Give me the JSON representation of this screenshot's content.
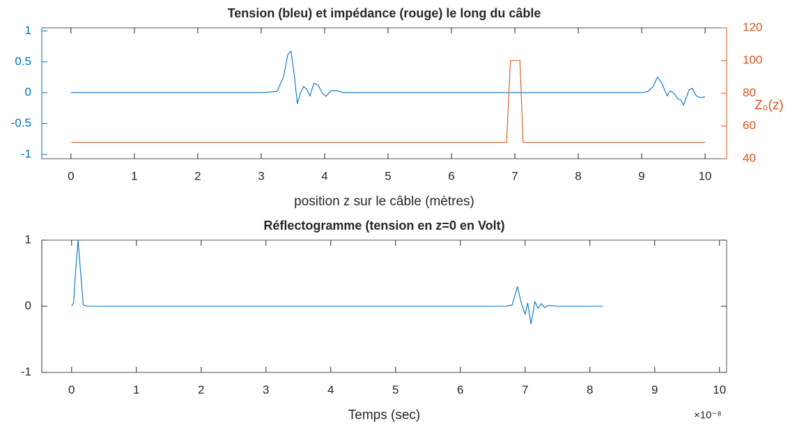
{
  "chart_data": [
    {
      "type": "line",
      "title": "Tension (bleu) et impédance (rouge) le long du câble",
      "x_label": "position z sur le câble (mètres)",
      "y2_label": "Z₀(z)",
      "xlim": [
        -0.46,
        10.34
      ],
      "xticks": [
        0,
        1,
        2,
        3,
        4,
        5,
        6,
        7,
        8,
        9,
        10
      ],
      "ylim": [
        -1.07,
        1.05
      ],
      "yticks": [
        -1,
        -0.5,
        0,
        0.5,
        1
      ],
      "y_color": "#0072bd",
      "y2lim": [
        40,
        120
      ],
      "y2ticks": [
        40,
        60,
        80,
        100,
        120
      ],
      "y2_color": "#d95319",
      "series": [
        {
          "name": "Tension",
          "color": "#0072bd",
          "x": [
            0,
            1,
            2,
            3,
            3.25,
            3.35,
            3.42,
            3.47,
            3.52,
            3.57,
            3.62,
            3.67,
            3.72,
            3.77,
            3.83,
            3.9,
            3.96,
            4.02,
            4.1,
            4.2,
            4.3,
            4.5,
            5,
            6,
            7,
            8,
            9,
            9.1,
            9.18,
            9.25,
            9.32,
            9.4,
            9.45,
            9.5,
            9.57,
            9.62,
            9.66,
            9.75,
            9.8,
            9.86,
            9.92,
            10
          ],
          "values": [
            0,
            0,
            0,
            0,
            0.02,
            0.25,
            0.62,
            0.67,
            0.3,
            -0.18,
            0,
            0.1,
            0.05,
            -0.05,
            0.15,
            0.12,
            0,
            -0.06,
            0.03,
            0.03,
            0,
            0,
            0,
            0,
            0,
            0,
            0,
            0.02,
            0.1,
            0.25,
            0.15,
            -0.05,
            0.03,
            0,
            -0.1,
            -0.12,
            -0.2,
            0.05,
            0.07,
            -0.05,
            -0.08,
            -0.07
          ]
        },
        {
          "name": "Impédance",
          "color": "#d95319",
          "axis": "y2",
          "x": [
            0,
            6.87,
            6.93,
            7.08,
            7.13,
            10
          ],
          "values": [
            50,
            50,
            100,
            100,
            50,
            50
          ]
        }
      ]
    },
    {
      "type": "line",
      "title": "Réflectogramme (tension en z=0 en Volt)",
      "x_label": "Temps (sec)",
      "x_exponent": "×10⁻⁸",
      "xlim": [
        -0.46,
        10.11
      ],
      "xticks": [
        0,
        1,
        2,
        3,
        4,
        5,
        6,
        7,
        8,
        9,
        10
      ],
      "ylim": [
        -1,
        1
      ],
      "yticks": [
        -1,
        0,
        1
      ],
      "y_color": "#262626",
      "series": [
        {
          "name": "Réflectogramme",
          "color": "#0072bd",
          "x": [
            0,
            0.03,
            0.06,
            0.1,
            0.14,
            0.18,
            0.25,
            1,
            2,
            3,
            4,
            5,
            6,
            6.7,
            6.8,
            6.88,
            6.94,
            7.0,
            7.04,
            7.09,
            7.15,
            7.2,
            7.25,
            7.3,
            7.35,
            7.4,
            7.5,
            8,
            8.2
          ],
          "values": [
            0,
            0.05,
            0.5,
            1,
            0.5,
            0.02,
            0,
            0,
            0,
            0,
            0,
            0,
            0,
            0,
            0.02,
            0.3,
            0.05,
            -0.12,
            0.05,
            -0.27,
            0.07,
            -0.03,
            0.04,
            -0.02,
            0.01,
            0.01,
            0,
            0,
            0
          ]
        }
      ]
    }
  ]
}
